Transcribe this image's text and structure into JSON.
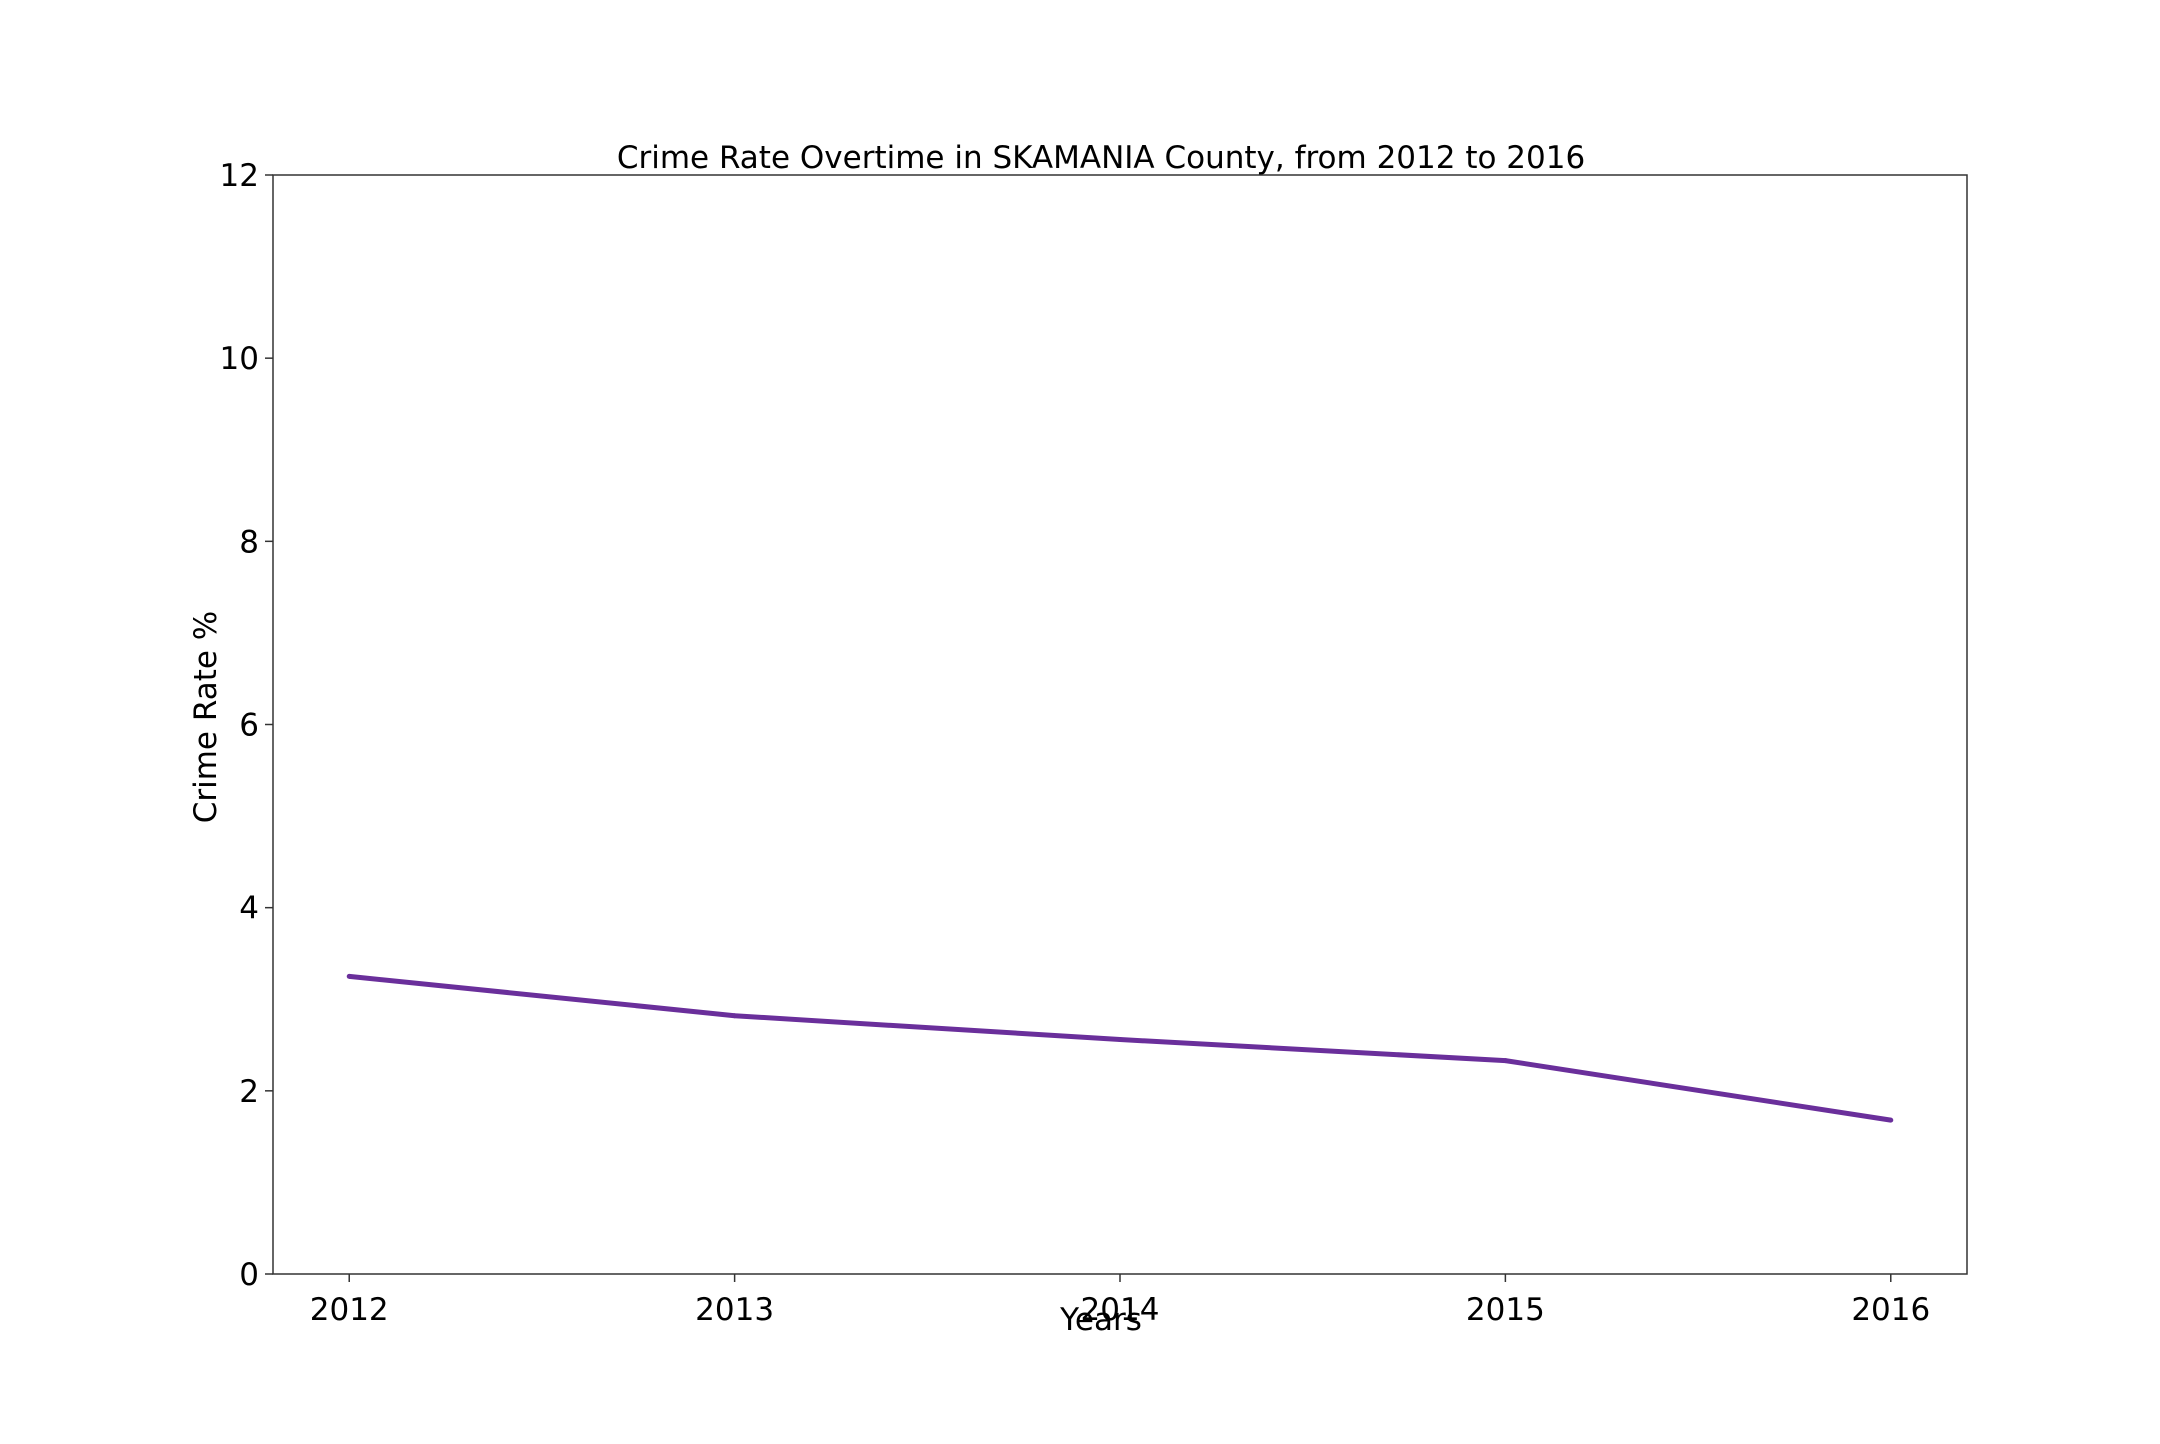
{
  "chart_data": {
    "type": "line",
    "title": "Crime Rate Overtime in SKAMANIA County, from 2012 to 2016",
    "xlabel": "Years",
    "ylabel": "Crime Rate %",
    "x": [
      "2012",
      "2013",
      "2014",
      "2015",
      "2016"
    ],
    "series": [
      {
        "values": [
          3.25,
          2.82,
          2.56,
          2.33,
          1.68
        ],
        "color": "#6a2f9b"
      }
    ],
    "ylim": [
      0,
      12
    ],
    "yticks": [
      "0",
      "2",
      "4",
      "6",
      "8",
      "10",
      "12"
    ],
    "grid": false,
    "legend": "none"
  }
}
